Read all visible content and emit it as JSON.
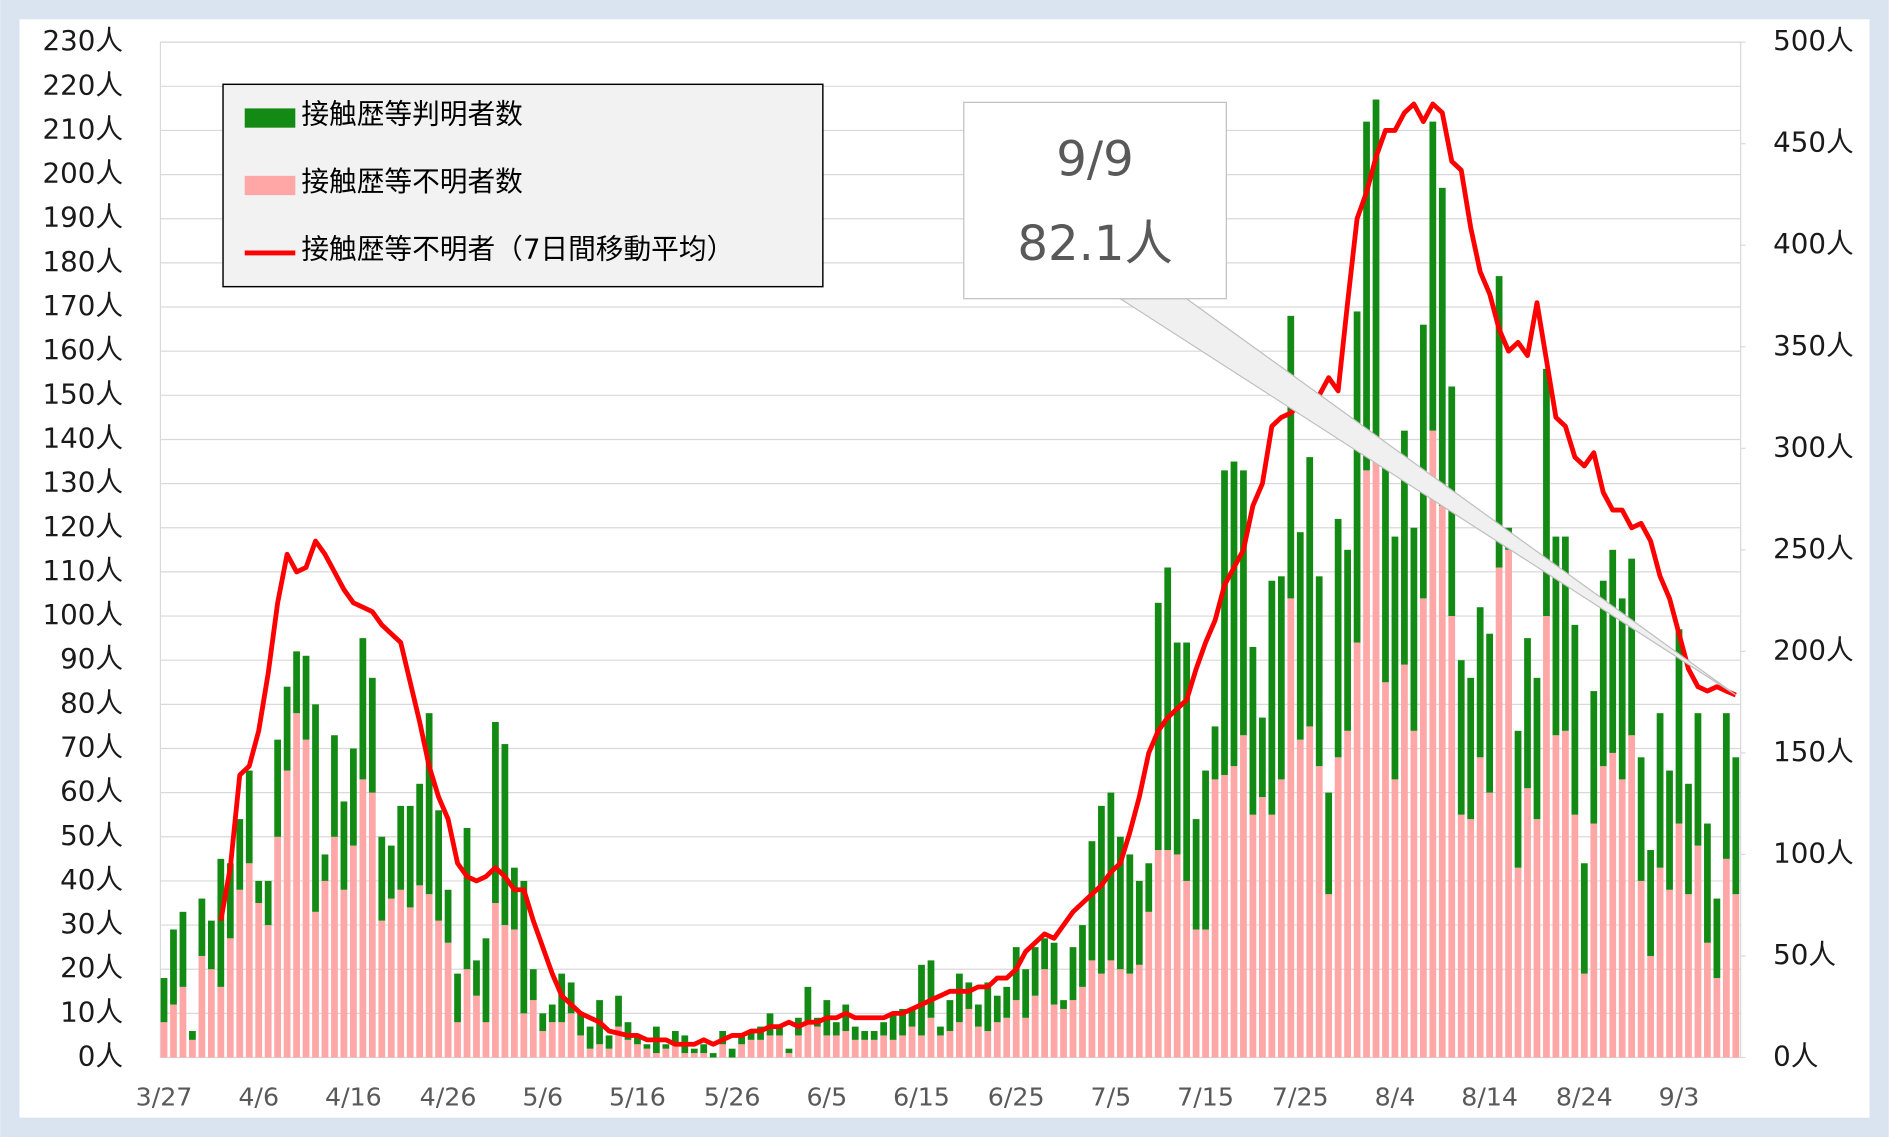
{
  "chart_data": {
    "type": "bar",
    "stacked": true,
    "categories": [
      "3/27",
      null,
      null,
      null,
      null,
      null,
      null,
      null,
      null,
      null,
      "4/6",
      null,
      null,
      null,
      null,
      null,
      null,
      null,
      null,
      null,
      "4/16",
      null,
      null,
      null,
      null,
      null,
      null,
      null,
      null,
      null,
      "4/26",
      null,
      null,
      null,
      null,
      null,
      null,
      null,
      null,
      null,
      "5/6",
      null,
      null,
      null,
      null,
      null,
      null,
      null,
      null,
      null,
      "5/16",
      null,
      null,
      null,
      null,
      null,
      null,
      null,
      null,
      null,
      "5/26",
      null,
      null,
      null,
      null,
      null,
      null,
      null,
      null,
      null,
      "6/5",
      null,
      null,
      null,
      null,
      null,
      null,
      null,
      null,
      null,
      "6/15",
      null,
      null,
      null,
      null,
      null,
      null,
      null,
      null,
      null,
      "6/25",
      null,
      null,
      null,
      null,
      null,
      null,
      null,
      null,
      null,
      "7/5",
      null,
      null,
      null,
      null,
      null,
      null,
      null,
      null,
      null,
      "7/15",
      null,
      null,
      null,
      null,
      null,
      null,
      null,
      null,
      null,
      "7/25",
      null,
      null,
      null,
      null,
      null,
      null,
      null,
      null,
      null,
      "8/4",
      null,
      null,
      null,
      null,
      null,
      null,
      null,
      null,
      null,
      "8/14",
      null,
      null,
      null,
      null,
      null,
      null,
      null,
      null,
      null,
      "8/24",
      null,
      null,
      null,
      null,
      null,
      null,
      null,
      null,
      null,
      "9/3",
      null,
      null,
      null,
      null,
      null,
      null
    ],
    "series": [
      {
        "name": "接触歴等判明者数",
        "type": "bar",
        "color": "#138a13",
        "values": [
          10,
          17,
          17,
          2,
          13,
          11,
          29,
          17,
          16,
          21,
          5,
          10,
          22,
          19,
          14,
          19,
          47,
          6,
          23,
          20,
          22,
          32,
          26,
          19,
          12,
          19,
          23,
          23,
          41,
          25,
          12,
          11,
          32,
          8,
          19,
          41,
          41,
          14,
          30,
          7,
          4,
          4,
          11,
          7,
          5,
          5,
          10,
          3,
          7,
          4,
          2,
          1,
          6,
          1,
          3,
          4,
          1,
          2,
          1,
          3,
          2,
          2,
          2,
          3,
          5,
          2,
          1,
          4,
          8,
          2,
          8,
          3,
          6,
          3,
          2,
          2,
          3,
          6,
          6,
          4,
          16,
          13,
          2,
          7,
          11,
          6,
          5,
          11,
          6,
          7,
          12,
          11,
          11,
          7,
          14,
          2,
          12,
          14,
          27,
          38,
          38,
          30,
          27,
          19,
          11,
          56,
          64,
          48,
          54,
          25,
          36,
          12,
          69,
          69,
          60,
          38,
          18,
          53,
          46,
          64,
          47,
          61,
          43,
          23,
          54,
          41,
          75,
          79,
          80,
          54,
          55,
          53,
          46,
          62,
          70,
          72,
          52,
          35,
          32,
          34,
          36,
          66,
          5,
          31,
          34,
          32,
          56,
          45,
          44,
          43,
          25,
          30,
          42,
          46,
          41,
          40,
          28,
          24,
          35,
          27,
          44,
          25,
          30,
          27,
          18,
          33,
          31
        ]
      },
      {
        "name": "接触歴等不明者数",
        "type": "bar",
        "color": "#ffa6a6",
        "values": [
          8,
          12,
          16,
          4,
          23,
          20,
          16,
          27,
          38,
          44,
          35,
          30,
          50,
          65,
          78,
          72,
          33,
          40,
          50,
          38,
          48,
          63,
          60,
          31,
          36,
          38,
          34,
          39,
          37,
          31,
          26,
          8,
          20,
          14,
          8,
          35,
          30,
          29,
          10,
          13,
          6,
          8,
          8,
          10,
          5,
          2,
          3,
          2,
          7,
          4,
          3,
          2,
          1,
          2,
          3,
          1,
          1,
          1,
          0,
          3,
          0,
          3,
          4,
          4,
          5,
          5,
          1,
          5,
          8,
          7,
          5,
          5,
          6,
          4,
          4,
          4,
          5,
          4,
          5,
          7,
          5,
          9,
          5,
          6,
          8,
          11,
          7,
          6,
          8,
          9,
          13,
          9,
          14,
          20,
          12,
          11,
          13,
          16,
          22,
          19,
          22,
          20,
          19,
          21,
          33,
          47,
          47,
          46,
          40,
          29,
          29,
          63,
          64,
          66,
          73,
          55,
          59,
          55,
          63,
          104,
          72,
          75,
          66,
          37,
          68,
          74,
          94,
          133,
          137,
          85,
          63,
          89,
          74,
          104,
          142,
          125,
          100,
          55,
          54,
          68,
          60,
          111,
          115,
          43,
          61,
          54,
          100,
          73,
          74,
          55,
          19,
          53,
          66,
          69,
          63,
          73,
          40,
          23,
          43,
          38,
          53,
          37,
          48,
          26,
          18,
          45,
          37
        ]
      },
      {
        "name": "接触歴等不明者（7日間移動平均）",
        "type": "line",
        "color": "#ff0000",
        "values": [
          null,
          null,
          null,
          null,
          null,
          null,
          31,
          43,
          64,
          66,
          74,
          87,
          103,
          114,
          110,
          111,
          117,
          114,
          110,
          106,
          103,
          102,
          101,
          98,
          96,
          94,
          85,
          76,
          66,
          59,
          54,
          44,
          41,
          40,
          41,
          43,
          41,
          38,
          38,
          31,
          25,
          19,
          14,
          12,
          10,
          9,
          8,
          6,
          5.5,
          5,
          5,
          4,
          4,
          4,
          3,
          3,
          3,
          4,
          3,
          4,
          5,
          5,
          6,
          6,
          7,
          7,
          8,
          7,
          8,
          8,
          9,
          9,
          10,
          9,
          9,
          9,
          9,
          10,
          10,
          11,
          12,
          13,
          14,
          15,
          15,
          15,
          16,
          16,
          18,
          18,
          20,
          24,
          26,
          28,
          27,
          30,
          33,
          35,
          37,
          39,
          42,
          44,
          51,
          59,
          69,
          74,
          77,
          79,
          81,
          88,
          94,
          99,
          107,
          111,
          115,
          125,
          130,
          143,
          145,
          146,
          148,
          150,
          150,
          154,
          151,
          171,
          190,
          196,
          204,
          210,
          210,
          214,
          216,
          212,
          216,
          214,
          203,
          201,
          188,
          178,
          173,
          165,
          160,
          162,
          159,
          171,
          158,
          145,
          143,
          136,
          134,
          137,
          128,
          124,
          124,
          120,
          121,
          117,
          109,
          104,
          96,
          88,
          84,
          83,
          84,
          83,
          82.1
        ]
      }
    ],
    "ylim": [
      0,
      230
    ],
    "yticks": [
      {
        "value": 0,
        "label": "0人"
      },
      {
        "value": 10,
        "label": "10人"
      },
      {
        "value": 20,
        "label": "20人"
      },
      {
        "value": 30,
        "label": "30人"
      },
      {
        "value": 40,
        "label": "40人"
      },
      {
        "value": 50,
        "label": "50人"
      },
      {
        "value": 60,
        "label": "60人"
      },
      {
        "value": 70,
        "label": "70人"
      },
      {
        "value": 80,
        "label": "80人"
      },
      {
        "value": 90,
        "label": "90人"
      },
      {
        "value": 100,
        "label": "100人"
      },
      {
        "value": 110,
        "label": "110人"
      },
      {
        "value": 120,
        "label": "120人"
      },
      {
        "value": 130,
        "label": "130人"
      },
      {
        "value": 140,
        "label": "140人"
      },
      {
        "value": 150,
        "label": "150人"
      },
      {
        "value": 160,
        "label": "160人"
      },
      {
        "value": 170,
        "label": "170人"
      },
      {
        "value": 180,
        "label": "180人"
      },
      {
        "value": 190,
        "label": "190人"
      },
      {
        "value": 200,
        "label": "200人"
      },
      {
        "value": 210,
        "label": "210人"
      },
      {
        "value": 220,
        "label": "220人"
      },
      {
        "value": 230,
        "label": "230人"
      }
    ],
    "y2lim": [
      0,
      500
    ],
    "y2ticks": [
      {
        "value": 0,
        "label": "0人"
      },
      {
        "value": 50,
        "label": "50人"
      },
      {
        "value": 100,
        "label": "100人"
      },
      {
        "value": 150,
        "label": "150人"
      },
      {
        "value": 200,
        "label": "200人"
      },
      {
        "value": 250,
        "label": "250人"
      },
      {
        "value": 300,
        "label": "300人"
      },
      {
        "value": 350,
        "label": "350人"
      },
      {
        "value": 400,
        "label": "400人"
      },
      {
        "value": 450,
        "label": "450人"
      },
      {
        "value": 500,
        "label": "500人"
      }
    ],
    "grid": true,
    "legend": "upper left",
    "annotation": [
      "9/9",
      "82.1人"
    ]
  }
}
